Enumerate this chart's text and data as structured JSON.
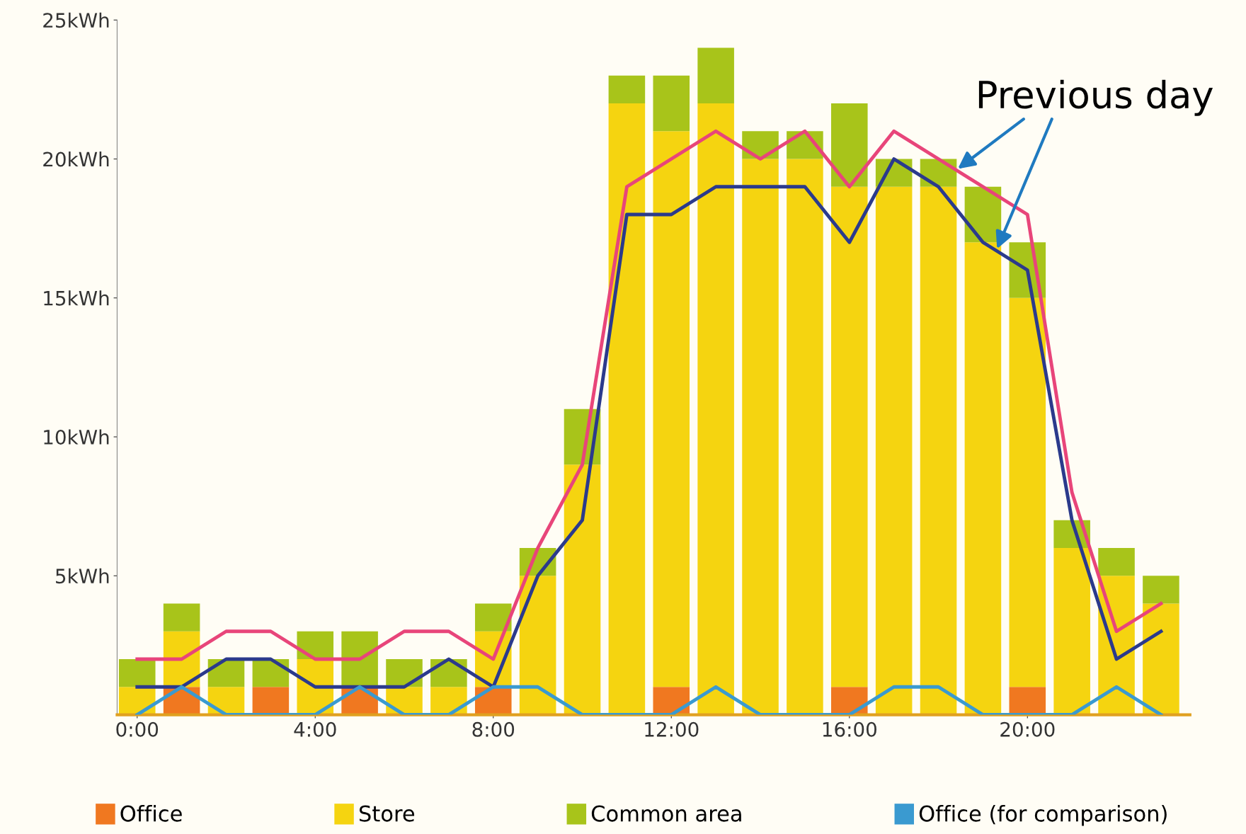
{
  "chart_data": {
    "type": "bar",
    "stacked": true,
    "x": [
      0,
      1,
      2,
      3,
      4,
      5,
      6,
      7,
      8,
      9,
      10,
      11,
      12,
      13,
      14,
      15,
      16,
      17,
      18,
      19,
      20,
      21,
      22,
      23
    ],
    "series": [
      {
        "name": "Office",
        "color": "#f07820",
        "values": [
          0,
          1,
          0,
          1,
          0,
          1,
          0,
          0,
          1,
          0,
          0,
          0,
          1,
          0,
          0,
          0,
          1,
          0,
          0,
          0,
          1,
          0,
          0,
          0
        ]
      },
      {
        "name": "Store",
        "color": "#f5d410",
        "values": [
          1,
          2,
          1,
          0,
          2,
          0,
          1,
          1,
          2,
          5,
          9,
          22,
          20,
          22,
          20,
          20,
          18,
          19,
          19,
          17,
          14,
          6,
          5,
          4
        ]
      },
      {
        "name": "Common area",
        "color": "#a8c41a",
        "values": [
          1,
          1,
          1,
          1,
          1,
          2,
          1,
          1,
          1,
          1,
          2,
          1,
          2,
          2,
          1,
          1,
          3,
          1,
          1,
          2,
          2,
          1,
          1,
          1
        ]
      },
      {
        "type": "line",
        "color": "#e8457a",
        "values": [
          2,
          2,
          3,
          3,
          2,
          2,
          3,
          3,
          2,
          6,
          9,
          19,
          20,
          21,
          20,
          21,
          19,
          21,
          20,
          19,
          18,
          8,
          3,
          4
        ]
      },
      {
        "type": "line",
        "color": "#2b3a8c",
        "values": [
          1,
          1,
          2,
          2,
          1,
          1,
          1,
          2,
          1,
          5,
          7,
          18,
          18,
          19,
          19,
          19,
          17,
          20,
          19,
          17,
          16,
          7,
          2,
          3
        ]
      },
      {
        "type": "line",
        "name": "Office (for comparison)",
        "color": "#3a9ad0",
        "values": [
          0,
          1,
          0,
          0,
          0,
          1,
          0,
          0,
          1,
          1,
          0,
          0,
          0,
          1,
          0,
          0,
          0,
          1,
          1,
          0,
          0,
          0,
          1,
          0
        ]
      }
    ],
    "xlim": [
      -0.45,
      23.65
    ],
    "ylim": [
      0,
      25
    ],
    "xticks": [
      {
        "value": 0,
        "label": "0:00"
      },
      {
        "value": 4,
        "label": "4:00"
      },
      {
        "value": 8,
        "label": "8:00"
      },
      {
        "value": 12,
        "label": "12:00"
      },
      {
        "value": 16,
        "label": "16:00"
      },
      {
        "value": 20,
        "label": "20:00"
      }
    ],
    "yticks": [
      {
        "value": 5,
        "label": "5kWh"
      },
      {
        "value": 10,
        "label": "10kWh"
      },
      {
        "value": 15,
        "label": "15kWh"
      },
      {
        "value": 20,
        "label": "20kWh"
      },
      {
        "value": 25,
        "label": "25kWh"
      }
    ],
    "annotations": [
      {
        "text": "Previous day",
        "x": 18.4,
        "y": 19.6
      }
    ],
    "grid": false,
    "legend": "bottom"
  }
}
